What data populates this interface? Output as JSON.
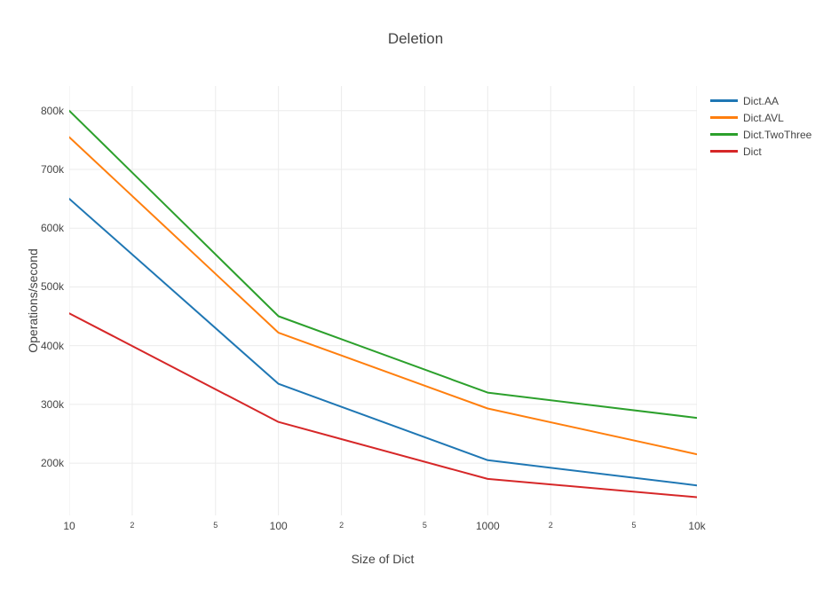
{
  "title": "Deletion",
  "colors": {
    "text": "#444444",
    "grid": "#ebebeb",
    "background": "#ffffff"
  },
  "chart_data": {
    "type": "line",
    "title": "Deletion",
    "xlabel": "Size of Dict",
    "ylabel": "Operations/second",
    "x": [
      10,
      100,
      1000,
      10000
    ],
    "series": [
      {
        "name": "Dict.AA",
        "color": "#1f77b4",
        "values": [
          650000,
          335000,
          205000,
          162000
        ]
      },
      {
        "name": "Dict.AVL",
        "color": "#ff7f0e",
        "values": [
          755000,
          422000,
          293000,
          215000
        ]
      },
      {
        "name": "Dict.TwoThree",
        "color": "#2ca02c",
        "values": [
          800000,
          450000,
          320000,
          277000
        ]
      },
      {
        "name": "Dict",
        "color": "#d62728",
        "values": [
          455000,
          270000,
          173000,
          142000
        ]
      }
    ],
    "xaxis": {
      "scale": "log",
      "range": [
        10,
        10000
      ],
      "ticks": [
        {
          "value": 10,
          "label": "10",
          "minor": false
        },
        {
          "value": 20,
          "label": "2",
          "minor": true
        },
        {
          "value": 50,
          "label": "5",
          "minor": true
        },
        {
          "value": 100,
          "label": "100",
          "minor": false
        },
        {
          "value": 200,
          "label": "2",
          "minor": true
        },
        {
          "value": 500,
          "label": "5",
          "minor": true
        },
        {
          "value": 1000,
          "label": "1000",
          "minor": false
        },
        {
          "value": 2000,
          "label": "2",
          "minor": true
        },
        {
          "value": 5000,
          "label": "5",
          "minor": true
        },
        {
          "value": 10000,
          "label": "10k",
          "minor": false
        }
      ]
    },
    "yaxis": {
      "scale": "linear",
      "range": [
        111000,
        842000
      ],
      "ticks": [
        {
          "value": 200000,
          "label": "200k"
        },
        {
          "value": 300000,
          "label": "300k"
        },
        {
          "value": 400000,
          "label": "400k"
        },
        {
          "value": 500000,
          "label": "500k"
        },
        {
          "value": 600000,
          "label": "600k"
        },
        {
          "value": 700000,
          "label": "700k"
        },
        {
          "value": 800000,
          "label": "800k"
        }
      ]
    },
    "grid": true,
    "legend_position": "right"
  }
}
